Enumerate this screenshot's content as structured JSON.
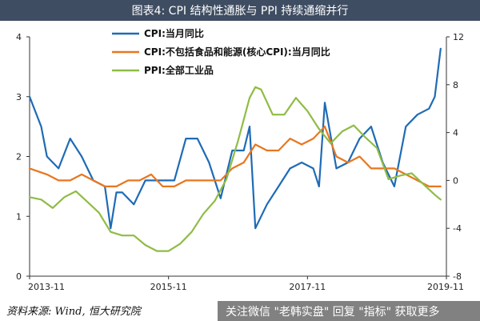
{
  "title": "图表4: CPI 结构性通胀与 PPI 持续通缩并行",
  "source": "资料来源: Wind, 恒大研究院",
  "watermark": "关注微信 \"老韩实盘\" 回复 \"指标\" 获取更多",
  "chart_data": {
    "type": "line",
    "x_ticks": [
      "2013-11",
      "2015-11",
      "2017-11",
      "2019-11"
    ],
    "x_range": [
      "2013-11",
      "2019-11"
    ],
    "left_axis": {
      "ylim": [
        0,
        4
      ],
      "ticks": [
        0,
        1,
        2,
        3,
        4
      ]
    },
    "right_axis": {
      "ylim": [
        -8,
        12
      ],
      "ticks": [
        -8,
        -4,
        0,
        4,
        8,
        12
      ]
    },
    "legend_position": "top-center",
    "grid": false,
    "series": [
      {
        "name": "CPI:当月同比",
        "axis": "left",
        "color": "#1f6bb5",
        "x": [
          "2013-11",
          "2014-01",
          "2014-02",
          "2014-04",
          "2014-06",
          "2014-08",
          "2014-10",
          "2014-12",
          "2015-01",
          "2015-02",
          "2015-03",
          "2015-05",
          "2015-07",
          "2015-09",
          "2015-12",
          "2016-02",
          "2016-04",
          "2016-06",
          "2016-08",
          "2016-10",
          "2016-12",
          "2017-01",
          "2017-02",
          "2017-04",
          "2017-06",
          "2017-08",
          "2017-10",
          "2017-12",
          "2018-01",
          "2018-02",
          "2018-04",
          "2018-06",
          "2018-08",
          "2018-10",
          "2018-12",
          "2019-02",
          "2019-04",
          "2019-06",
          "2019-08",
          "2019-09",
          "2019-10"
        ],
        "y": [
          3.0,
          2.5,
          2.0,
          1.8,
          2.3,
          2.0,
          1.6,
          1.5,
          0.8,
          1.4,
          1.4,
          1.2,
          1.6,
          1.6,
          1.6,
          2.3,
          2.3,
          1.9,
          1.3,
          2.1,
          2.1,
          2.5,
          0.8,
          1.2,
          1.5,
          1.8,
          1.9,
          1.8,
          1.5,
          2.9,
          1.8,
          1.9,
          2.3,
          2.5,
          1.9,
          1.5,
          2.5,
          2.7,
          2.8,
          3.0,
          3.8
        ]
      },
      {
        "name": "CPI:不包括食品和能源(核心CPI):当月同比",
        "axis": "left",
        "color": "#e8761f",
        "x": [
          "2013-11",
          "2014-02",
          "2014-04",
          "2014-06",
          "2014-08",
          "2014-10",
          "2014-12",
          "2015-02",
          "2015-04",
          "2015-06",
          "2015-08",
          "2015-10",
          "2015-12",
          "2016-02",
          "2016-04",
          "2016-06",
          "2016-08",
          "2016-10",
          "2016-12",
          "2017-02",
          "2017-04",
          "2017-06",
          "2017-08",
          "2017-10",
          "2017-12",
          "2018-02",
          "2018-04",
          "2018-06",
          "2018-08",
          "2018-10",
          "2018-12",
          "2019-02",
          "2019-04",
          "2019-06",
          "2019-08",
          "2019-10"
        ],
        "y": [
          1.8,
          1.7,
          1.6,
          1.6,
          1.7,
          1.6,
          1.5,
          1.5,
          1.6,
          1.6,
          1.7,
          1.5,
          1.5,
          1.6,
          1.6,
          1.6,
          1.6,
          1.8,
          1.9,
          2.2,
          2.1,
          2.1,
          2.3,
          2.2,
          2.3,
          2.5,
          2.0,
          1.9,
          2.0,
          1.8,
          1.8,
          1.8,
          1.7,
          1.6,
          1.5,
          1.5
        ]
      },
      {
        "name": "PPI:全部工业品",
        "axis": "right",
        "color": "#8fbc45",
        "x": [
          "2013-11",
          "2014-01",
          "2014-03",
          "2014-05",
          "2014-07",
          "2014-09",
          "2014-11",
          "2015-01",
          "2015-03",
          "2015-05",
          "2015-07",
          "2015-09",
          "2015-11",
          "2016-01",
          "2016-03",
          "2016-05",
          "2016-07",
          "2016-09",
          "2016-11",
          "2017-01",
          "2017-02",
          "2017-03",
          "2017-05",
          "2017-07",
          "2017-09",
          "2017-11",
          "2018-01",
          "2018-03",
          "2018-05",
          "2018-07",
          "2018-09",
          "2018-11",
          "2019-01",
          "2019-03",
          "2019-05",
          "2019-07",
          "2019-09",
          "2019-10"
        ],
        "y": [
          -1.4,
          -1.6,
          -2.3,
          -1.4,
          -0.9,
          -1.8,
          -2.7,
          -4.3,
          -4.6,
          -4.6,
          -5.4,
          -5.9,
          -5.9,
          -5.3,
          -4.3,
          -2.8,
          -1.7,
          0.1,
          3.3,
          6.9,
          7.8,
          7.6,
          5.5,
          5.5,
          6.9,
          5.8,
          4.3,
          3.1,
          4.1,
          4.6,
          3.6,
          2.7,
          0.1,
          0.4,
          0.6,
          -0.3,
          -1.2,
          -1.6
        ]
      }
    ]
  }
}
